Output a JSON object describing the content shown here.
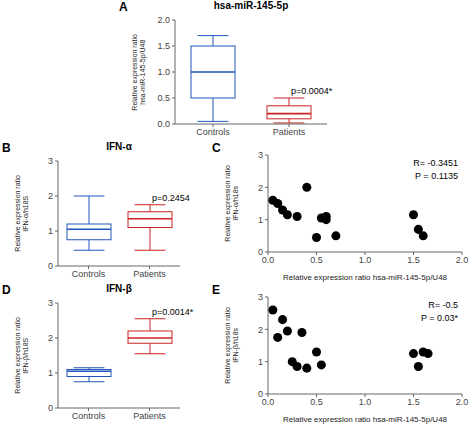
{
  "chart_data": [
    {
      "type": "box",
      "panel_label": "A",
      "title": "hsa-miR-145-5p",
      "ylabel": "Relative expression ratio\nhsa-miR-145-5p/U48",
      "categories": [
        "Controls",
        "Patients"
      ],
      "boxes": [
        {
          "whislo": 0.05,
          "q1": 0.5,
          "med": 1.0,
          "q3": 1.5,
          "whishi": 1.7
        },
        {
          "whislo": 0.02,
          "q1": 0.1,
          "med": 0.2,
          "q3": 0.35,
          "whishi": 0.5
        }
      ],
      "colors": [
        "#2255bb",
        "#cc2222"
      ],
      "annotation": "p=0.0004*",
      "ylim": [
        0,
        2.0
      ],
      "yticks": [
        {
          "value": 0,
          "label": "0.0"
        },
        {
          "value": 0.5,
          "label": "0.5"
        },
        {
          "value": 1,
          "label": "1.0"
        },
        {
          "value": 1.5,
          "label": "1.5"
        },
        {
          "value": 2,
          "label": "2.0"
        }
      ]
    },
    {
      "type": "box",
      "panel_label": "B",
      "title": "IFN-α",
      "ylabel": "Relative expression ratio\nIFN-α/h18S",
      "categories": [
        "Controls",
        "Patients"
      ],
      "boxes": [
        {
          "whislo": 0.45,
          "q1": 0.75,
          "med": 1.05,
          "q3": 1.2,
          "whishi": 2.0
        },
        {
          "whislo": 0.45,
          "q1": 1.1,
          "med": 1.35,
          "q3": 1.55,
          "whishi": 1.75
        }
      ],
      "colors": [
        "#2255bb",
        "#cc2222"
      ],
      "annotation": "p=0.2454",
      "ylim": [
        0,
        3
      ],
      "yticks": [
        0,
        1,
        2,
        3
      ]
    },
    {
      "type": "scatter",
      "panel_label": "C",
      "xlabel": "Relative expression ratio hsa-miR-145-5p/U48",
      "ylabel": "Relative expression ratio\nIFN-α/h18s",
      "annotation": "R= -0.3451\nP = 0.1135",
      "color": "black",
      "x": [
        0.05,
        0.1,
        0.15,
        0.2,
        0.3,
        0.4,
        0.5,
        0.55,
        0.6,
        0.6,
        0.7,
        1.5,
        1.55,
        1.6
      ],
      "values": [
        1.6,
        1.5,
        1.3,
        1.15,
        1.1,
        2.0,
        0.45,
        1.05,
        1.1,
        1.0,
        0.5,
        1.15,
        0.7,
        0.5
      ],
      "xlim": [
        0,
        2.0
      ],
      "xticks": [
        {
          "value": 0,
          "label": "0.0"
        },
        {
          "value": 0.5,
          "label": "0.5"
        },
        {
          "value": 1,
          "label": "1.0"
        },
        {
          "value": 1.5,
          "label": "1.5"
        },
        {
          "value": 2,
          "label": "2.0"
        }
      ],
      "ylim": [
        0,
        3
      ],
      "yticks": [
        0,
        1,
        2,
        3
      ]
    },
    {
      "type": "box",
      "panel_label": "D",
      "title": "IFN-β",
      "ylabel": "Relative expression ratio\nIFN-β/h18S",
      "categories": [
        "Controls",
        "Patients"
      ],
      "boxes": [
        {
          "whislo": 0.75,
          "q1": 0.9,
          "med": 1.05,
          "q3": 1.1,
          "whishi": 1.15
        },
        {
          "whislo": 1.55,
          "q1": 1.85,
          "med": 2.0,
          "q3": 2.2,
          "whishi": 2.55
        }
      ],
      "colors": [
        "#2255bb",
        "#cc2222"
      ],
      "annotation": "p=0.0014*",
      "ylim": [
        0,
        3
      ],
      "yticks": [
        0,
        1,
        2,
        3
      ]
    },
    {
      "type": "scatter",
      "panel_label": "E",
      "xlabel": "Relative expression ratio hsa-miR-145-5p/U48",
      "ylabel": "Relative expression ratio\nIFN-β/h18s",
      "annotation": "R= -0.5\nP = 0.03*",
      "color": "black",
      "x": [
        0.05,
        0.1,
        0.15,
        0.2,
        0.25,
        0.3,
        0.35,
        0.4,
        0.5,
        0.55,
        1.5,
        1.55,
        1.6,
        1.65
      ],
      "values": [
        2.6,
        1.75,
        2.3,
        1.95,
        1.0,
        0.85,
        1.9,
        0.8,
        1.3,
        0.9,
        1.25,
        0.85,
        1.3,
        1.25
      ],
      "xlim": [
        0,
        2.0
      ],
      "xticks": [
        {
          "value": 0,
          "label": "0.0"
        },
        {
          "value": 0.5,
          "label": "0.5"
        },
        {
          "value": 1,
          "label": "1.0"
        },
        {
          "value": 1.5,
          "label": "1.5"
        },
        {
          "value": 2,
          "label": "2.0"
        }
      ],
      "ylim": [
        0,
        3
      ],
      "yticks": [
        0,
        1,
        2,
        3
      ]
    }
  ]
}
